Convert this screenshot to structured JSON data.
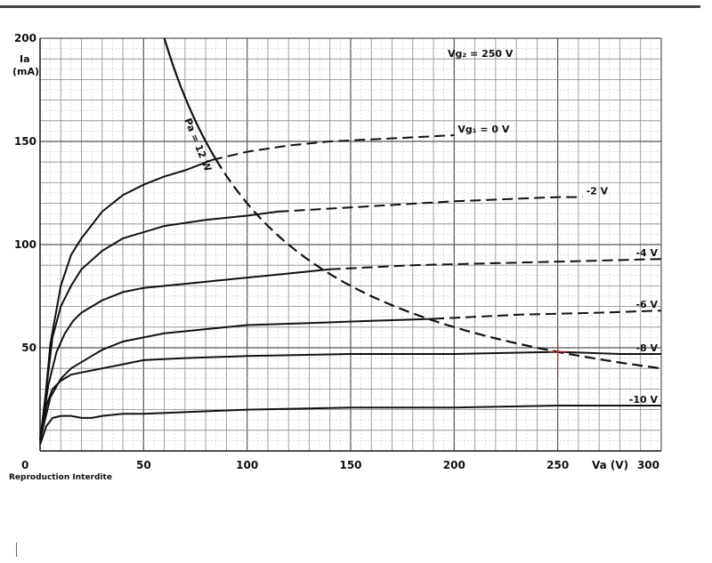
{
  "credit": "Reproduction Interdite",
  "chart_data": {
    "type": "line",
    "title": "",
    "xlabel": "Va (V)",
    "ylabel_lines": [
      "Ia",
      "(mA)"
    ],
    "screen_voltage_label": "Vg₂ = 250 V",
    "xlim": [
      0,
      300
    ],
    "ylim": [
      0,
      200
    ],
    "x_ticks": [
      {
        "v": 0,
        "label": "0"
      },
      {
        "v": 50,
        "label": "50"
      },
      {
        "v": 100,
        "label": "100"
      },
      {
        "v": 150,
        "label": "150"
      },
      {
        "v": 200,
        "label": "200"
      },
      {
        "v": 250,
        "label": "250"
      },
      {
        "v": 300,
        "label": "300"
      }
    ],
    "y_ticks": [
      {
        "v": 50,
        "label": "50"
      },
      {
        "v": 100,
        "label": "100"
      },
      {
        "v": 150,
        "label": "150"
      },
      {
        "v": 200,
        "label": "200"
      }
    ],
    "grid": true,
    "series": [
      {
        "name": "Vg₁ = 0 V",
        "solid_until": 83,
        "points": [
          [
            0,
            5
          ],
          [
            2,
            20
          ],
          [
            5,
            52
          ],
          [
            10,
            80
          ],
          [
            15,
            95
          ],
          [
            20,
            103
          ],
          [
            30,
            116
          ],
          [
            40,
            124
          ],
          [
            50,
            129
          ],
          [
            60,
            133
          ],
          [
            70,
            136
          ],
          [
            83,
            141
          ],
          [
            100,
            145
          ],
          [
            120,
            148
          ],
          [
            140,
            150
          ],
          [
            160,
            151
          ],
          [
            180,
            152
          ],
          [
            200,
            153
          ]
        ]
      },
      {
        "name": "-2 V",
        "solid_until": 115,
        "points": [
          [
            0,
            5
          ],
          [
            3,
            30
          ],
          [
            6,
            55
          ],
          [
            10,
            70
          ],
          [
            15,
            80
          ],
          [
            20,
            88
          ],
          [
            30,
            97
          ],
          [
            40,
            103
          ],
          [
            50,
            106
          ],
          [
            60,
            109
          ],
          [
            80,
            112
          ],
          [
            100,
            114
          ],
          [
            115,
            116
          ],
          [
            150,
            118
          ],
          [
            200,
            121
          ],
          [
            250,
            123
          ],
          [
            262,
            123
          ]
        ]
      },
      {
        "name": "-4 V",
        "solid_until": 140,
        "points": [
          [
            0,
            5
          ],
          [
            4,
            32
          ],
          [
            8,
            48
          ],
          [
            12,
            57
          ],
          [
            16,
            63
          ],
          [
            20,
            67
          ],
          [
            30,
            73
          ],
          [
            40,
            77
          ],
          [
            50,
            79
          ],
          [
            70,
            81
          ],
          [
            100,
            84
          ],
          [
            120,
            86
          ],
          [
            140,
            88
          ],
          [
            180,
            90
          ],
          [
            220,
            91
          ],
          [
            260,
            92
          ],
          [
            300,
            93
          ]
        ]
      },
      {
        "name": "-6 V",
        "solid_until": 190,
        "points": [
          [
            0,
            5
          ],
          [
            5,
            26
          ],
          [
            10,
            35
          ],
          [
            15,
            40
          ],
          [
            20,
            43
          ],
          [
            30,
            49
          ],
          [
            40,
            53
          ],
          [
            50,
            55
          ],
          [
            60,
            57
          ],
          [
            80,
            59
          ],
          [
            100,
            61
          ],
          [
            130,
            62
          ],
          [
            160,
            63
          ],
          [
            190,
            64
          ],
          [
            230,
            66
          ],
          [
            270,
            67
          ],
          [
            300,
            68
          ]
        ]
      },
      {
        "name": "-8 V",
        "solid_until": 300,
        "points": [
          [
            0,
            5
          ],
          [
            3,
            22
          ],
          [
            6,
            30
          ],
          [
            10,
            34
          ],
          [
            15,
            37
          ],
          [
            20,
            38
          ],
          [
            25,
            39
          ],
          [
            30,
            40
          ],
          [
            40,
            42
          ],
          [
            50,
            44
          ],
          [
            70,
            45
          ],
          [
            100,
            46
          ],
          [
            150,
            47
          ],
          [
            200,
            47
          ],
          [
            250,
            48
          ],
          [
            280,
            47
          ],
          [
            300,
            47
          ]
        ]
      },
      {
        "name": "-10 V",
        "solid_until": 300,
        "points": [
          [
            0,
            3
          ],
          [
            3,
            12
          ],
          [
            6,
            16
          ],
          [
            10,
            17
          ],
          [
            15,
            17
          ],
          [
            20,
            16
          ],
          [
            25,
            16
          ],
          [
            30,
            17
          ],
          [
            40,
            18
          ],
          [
            50,
            18
          ],
          [
            75,
            19
          ],
          [
            100,
            20
          ],
          [
            150,
            21
          ],
          [
            200,
            21
          ],
          [
            250,
            22
          ],
          [
            300,
            22
          ]
        ]
      }
    ],
    "power_curve": {
      "label": "Pa = 12 W",
      "watts": 12,
      "solid_until": 85
    },
    "marker": {
      "x": 250,
      "y": 48,
      "color": "#cc2222"
    }
  }
}
